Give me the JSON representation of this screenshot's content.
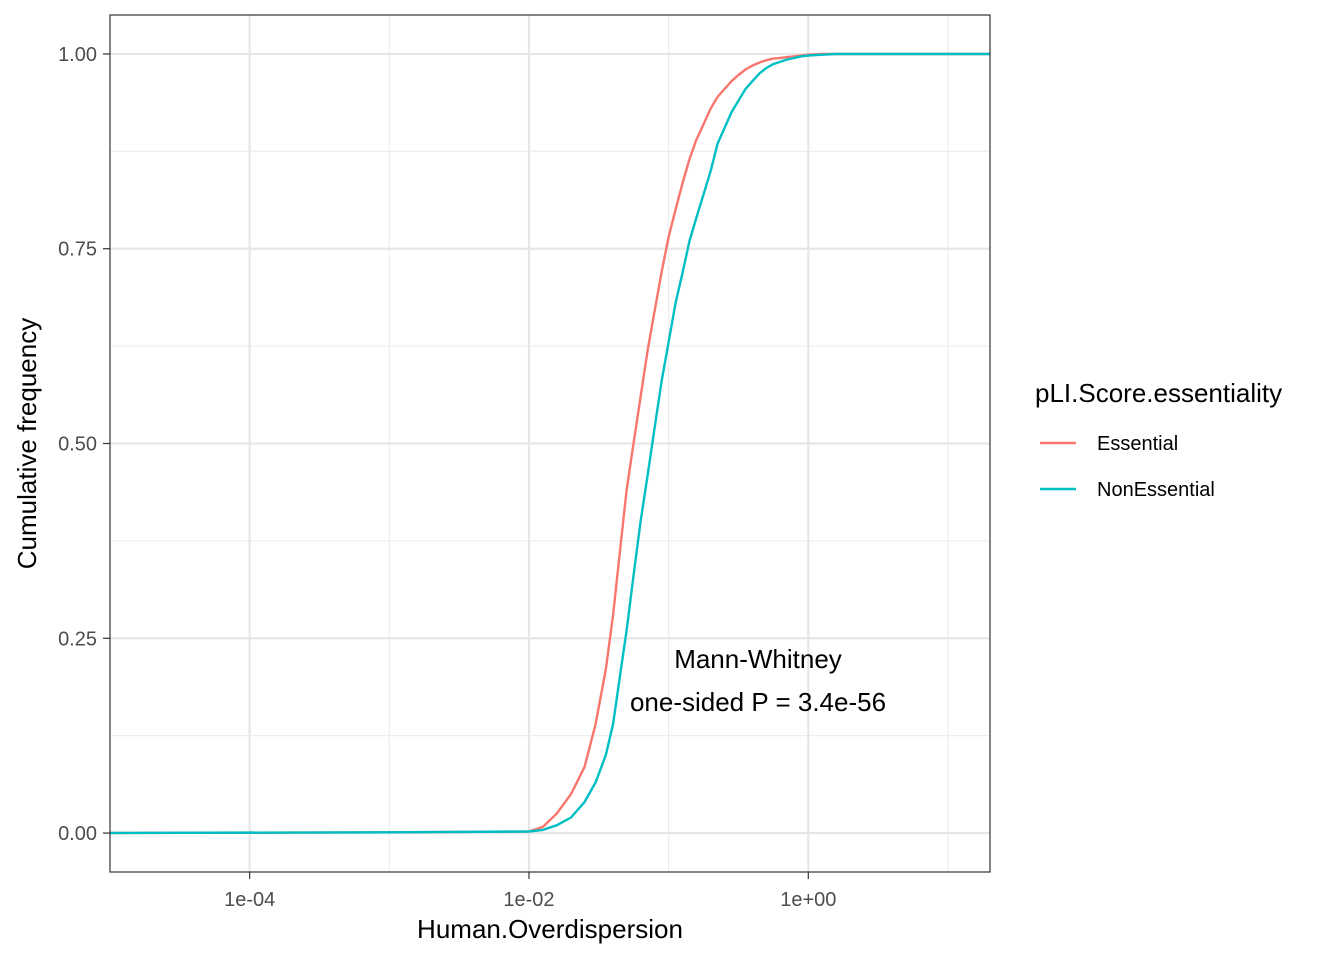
{
  "chart_data": {
    "type": "line",
    "xlabel": "Human.Overdispersion",
    "ylabel": "Cumulative frequency",
    "x_scale": "log10",
    "xlim": [
      1e-05,
      20
    ],
    "ylim": [
      -0.05,
      1.05
    ],
    "x_ticks": [
      {
        "value": 0.0001,
        "label": "1e-04"
      },
      {
        "value": 0.01,
        "label": "1e-02"
      },
      {
        "value": 1,
        "label": "1e+00"
      }
    ],
    "y_ticks": [
      {
        "value": 0,
        "label": "0.00"
      },
      {
        "value": 0.25,
        "label": "0.25"
      },
      {
        "value": 0.5,
        "label": "0.50"
      },
      {
        "value": 0.75,
        "label": "0.75"
      },
      {
        "value": 1,
        "label": "1.00"
      }
    ],
    "grid": true,
    "legend": {
      "title": "pLI.Score.essentiality",
      "position": "right"
    },
    "annotation": [
      "Mann-Whitney",
      "one-sided P = 3.4e-56"
    ],
    "series": [
      {
        "name": "Essential",
        "color": "#F8766D",
        "x": [
          1e-05,
          0.001,
          0.01,
          0.0126,
          0.0158,
          0.02,
          0.025,
          0.03,
          0.0355,
          0.04,
          0.0447,
          0.05,
          0.056,
          0.063,
          0.0708,
          0.0794,
          0.089,
          0.1,
          0.112,
          0.126,
          0.141,
          0.158,
          0.178,
          0.2,
          0.224,
          0.251,
          0.282,
          0.316,
          0.355,
          0.398,
          0.447,
          0.5,
          0.562,
          0.631,
          0.708,
          0.794,
          0.891,
          1.0,
          1.26,
          1.58,
          2.0,
          5.0,
          20.0
        ],
        "y": [
          0,
          0.001,
          0.002,
          0.008,
          0.025,
          0.05,
          0.085,
          0.14,
          0.21,
          0.28,
          0.36,
          0.44,
          0.5,
          0.56,
          0.62,
          0.67,
          0.72,
          0.765,
          0.8,
          0.835,
          0.865,
          0.89,
          0.91,
          0.93,
          0.945,
          0.955,
          0.965,
          0.973,
          0.98,
          0.985,
          0.989,
          0.992,
          0.994,
          0.995,
          0.996,
          0.997,
          0.998,
          0.999,
          1.0,
          1.0,
          1.0,
          1.0,
          1.0
        ]
      },
      {
        "name": "NonEssential",
        "color": "#00BFC4",
        "x": [
          1e-05,
          0.001,
          0.01,
          0.0126,
          0.0158,
          0.02,
          0.025,
          0.03,
          0.0355,
          0.04,
          0.0447,
          0.05,
          0.056,
          0.063,
          0.0708,
          0.0794,
          0.089,
          0.1,
          0.112,
          0.126,
          0.141,
          0.158,
          0.178,
          0.2,
          0.224,
          0.251,
          0.282,
          0.316,
          0.355,
          0.398,
          0.447,
          0.5,
          0.562,
          0.631,
          0.708,
          0.794,
          0.891,
          1.0,
          1.26,
          1.58,
          2.0,
          5.0,
          20.0
        ],
        "y": [
          0,
          0.001,
          0.002,
          0.004,
          0.01,
          0.02,
          0.04,
          0.065,
          0.1,
          0.14,
          0.2,
          0.26,
          0.33,
          0.4,
          0.46,
          0.52,
          0.58,
          0.63,
          0.68,
          0.72,
          0.76,
          0.79,
          0.82,
          0.85,
          0.885,
          0.905,
          0.925,
          0.94,
          0.955,
          0.965,
          0.975,
          0.982,
          0.987,
          0.99,
          0.993,
          0.995,
          0.997,
          0.998,
          0.999,
          1.0,
          1.0,
          1.0,
          1.0
        ]
      }
    ]
  }
}
